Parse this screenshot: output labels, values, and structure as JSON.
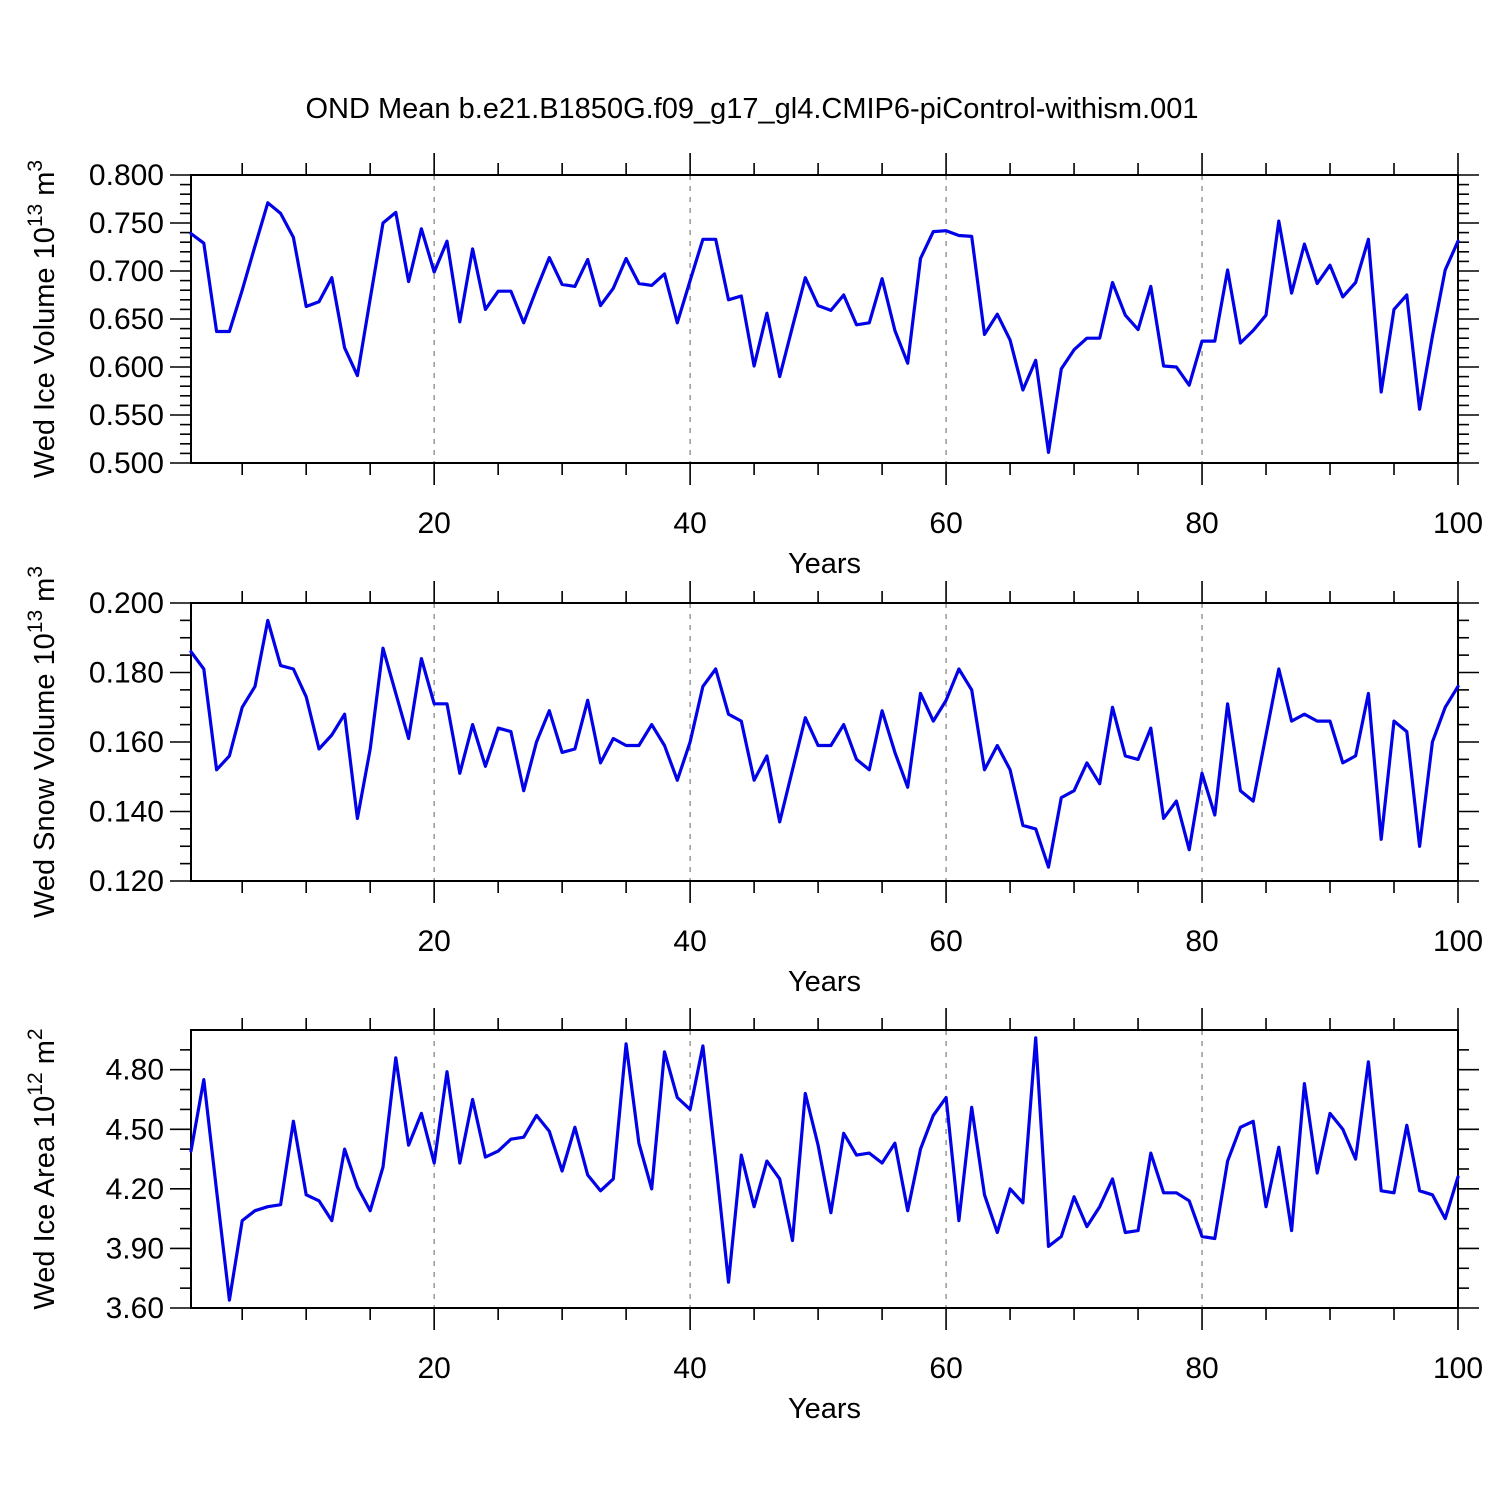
{
  "title": "OND Mean b.e21.B1850G.f09_g17_gl4.CMIP6-piControl-withism.001",
  "line_color": "#0202e8",
  "grid_color": "#878787",
  "xlabel": "Years",
  "chart_data": [
    {
      "type": "line",
      "name": "wed-ice-volume",
      "ylabel": "Wed Ice Volume 10^13 m^3",
      "ylabel_parts": [
        {
          "t": "Wed Ice Volume 10"
        },
        {
          "t": "13",
          "sup": true
        },
        {
          "t": " m"
        },
        {
          "t": "3",
          "sup": true
        }
      ],
      "ylim": [
        0.5,
        0.8
      ],
      "ytick_values": [
        0.5,
        0.55,
        0.6,
        0.65,
        0.7,
        0.75,
        0.8
      ],
      "ytick_labels": [
        "0.500",
        "0.550",
        "0.600",
        "0.650",
        "0.700",
        "0.750",
        "0.800"
      ],
      "yminor_step": 0.01,
      "xlabel": "Years",
      "xlim": [
        1,
        100
      ],
      "xticks": [
        20,
        40,
        60,
        80,
        100
      ],
      "xtick_labels": [
        "20",
        "40",
        "60",
        "80",
        "100"
      ],
      "xminor_step": 5,
      "grid_x": [
        20,
        40,
        60,
        80
      ],
      "x_start": 1,
      "values": [
        0.739,
        0.729,
        0.637,
        0.637,
        0.68,
        0.726,
        0.771,
        0.76,
        0.735,
        0.663,
        0.668,
        0.693,
        0.62,
        0.591,
        0.671,
        0.75,
        0.761,
        0.689,
        0.744,
        0.699,
        0.731,
        0.647,
        0.723,
        0.66,
        0.679,
        0.679,
        0.646,
        0.681,
        0.714,
        0.686,
        0.684,
        0.712,
        0.664,
        0.682,
        0.713,
        0.687,
        0.685,
        0.697,
        0.646,
        0.69,
        0.733,
        0.733,
        0.67,
        0.674,
        0.601,
        0.656,
        0.59,
        0.642,
        0.693,
        0.664,
        0.659,
        0.675,
        0.644,
        0.646,
        0.692,
        0.638,
        0.604,
        0.713,
        0.741,
        0.742,
        0.737,
        0.736,
        0.634,
        0.655,
        0.628,
        0.576,
        0.607,
        0.511,
        0.598,
        0.618,
        0.63,
        0.63,
        0.688,
        0.654,
        0.639,
        0.684,
        0.601,
        0.6,
        0.581,
        0.627,
        0.627,
        0.701,
        0.625,
        0.638,
        0.654,
        0.752,
        0.677,
        0.728,
        0.687,
        0.706,
        0.673,
        0.688,
        0.733,
        0.574,
        0.66,
        0.675,
        0.556,
        0.632,
        0.701,
        0.731
      ]
    },
    {
      "type": "line",
      "name": "wed-snow-volume",
      "ylabel": "Wed Snow Volume 10^13 m^3",
      "ylabel_parts": [
        {
          "t": "Wed Snow Volume 10"
        },
        {
          "t": "13",
          "sup": true
        },
        {
          "t": " m"
        },
        {
          "t": "3",
          "sup": true
        }
      ],
      "ylim": [
        0.12,
        0.2
      ],
      "ytick_values": [
        0.12,
        0.14,
        0.16,
        0.18,
        0.2
      ],
      "ytick_labels": [
        "0.120",
        "0.140",
        "0.160",
        "0.180",
        "0.200"
      ],
      "yminor_step": 0.005,
      "xlabel": "Years",
      "xlim": [
        1,
        100
      ],
      "xticks": [
        20,
        40,
        60,
        80,
        100
      ],
      "xtick_labels": [
        "20",
        "40",
        "60",
        "80",
        "100"
      ],
      "xminor_step": 5,
      "grid_x": [
        20,
        40,
        60,
        80
      ],
      "x_start": 1,
      "values": [
        0.186,
        0.181,
        0.152,
        0.156,
        0.17,
        0.176,
        0.195,
        0.182,
        0.181,
        0.173,
        0.158,
        0.162,
        0.168,
        0.138,
        0.158,
        0.187,
        0.174,
        0.161,
        0.184,
        0.171,
        0.171,
        0.151,
        0.165,
        0.153,
        0.164,
        0.163,
        0.146,
        0.16,
        0.169,
        0.157,
        0.158,
        0.172,
        0.154,
        0.161,
        0.159,
        0.159,
        0.165,
        0.159,
        0.149,
        0.16,
        0.176,
        0.181,
        0.168,
        0.166,
        0.149,
        0.156,
        0.137,
        0.152,
        0.167,
        0.159,
        0.159,
        0.165,
        0.155,
        0.152,
        0.169,
        0.157,
        0.147,
        0.174,
        0.166,
        0.172,
        0.181,
        0.175,
        0.152,
        0.159,
        0.152,
        0.136,
        0.135,
        0.124,
        0.144,
        0.146,
        0.154,
        0.148,
        0.17,
        0.156,
        0.155,
        0.164,
        0.138,
        0.143,
        0.129,
        0.151,
        0.139,
        0.171,
        0.146,
        0.143,
        0.162,
        0.181,
        0.166,
        0.168,
        0.166,
        0.166,
        0.154,
        0.156,
        0.174,
        0.132,
        0.166,
        0.163,
        0.13,
        0.16,
        0.17,
        0.176
      ]
    },
    {
      "type": "line",
      "name": "wed-ice-area",
      "ylabel": "Wed Ice Area 10^12 m^2",
      "ylabel_parts": [
        {
          "t": "Wed Ice Area 10"
        },
        {
          "t": "12",
          "sup": true
        },
        {
          "t": " m"
        },
        {
          "t": "2",
          "sup": true
        }
      ],
      "ylim": [
        3.6,
        5.0
      ],
      "ytick_values": [
        3.6,
        3.9,
        4.2,
        4.5,
        4.8
      ],
      "ytick_labels": [
        "3.60",
        "3.90",
        "4.20",
        "4.50",
        "4.80"
      ],
      "yminor_step": 0.1,
      "xlabel": "Years",
      "xlim": [
        1,
        100
      ],
      "xticks": [
        20,
        40,
        60,
        80,
        100
      ],
      "xtick_labels": [
        "20",
        "40",
        "60",
        "80",
        "100"
      ],
      "xminor_step": 5,
      "grid_x": [
        20,
        40,
        60,
        80
      ],
      "x_start": 1,
      "values": [
        4.39,
        4.75,
        4.19,
        3.64,
        4.04,
        4.09,
        4.11,
        4.12,
        4.54,
        4.17,
        4.14,
        4.04,
        4.4,
        4.21,
        4.09,
        4.31,
        4.86,
        4.42,
        4.58,
        4.33,
        4.79,
        4.33,
        4.65,
        4.36,
        4.39,
        4.45,
        4.46,
        4.57,
        4.49,
        4.29,
        4.51,
        4.27,
        4.19,
        4.25,
        4.93,
        4.43,
        4.2,
        4.89,
        4.66,
        4.6,
        4.92,
        4.34,
        3.73,
        4.37,
        4.11,
        4.34,
        4.25,
        3.94,
        4.68,
        4.42,
        4.08,
        4.48,
        4.37,
        4.38,
        4.33,
        4.43,
        4.09,
        4.4,
        4.57,
        4.66,
        4.04,
        4.61,
        4.17,
        3.98,
        4.2,
        4.13,
        4.96,
        3.91,
        3.96,
        4.16,
        4.01,
        4.11,
        4.25,
        3.98,
        3.99,
        4.38,
        4.18,
        4.18,
        4.14,
        3.96,
        3.95,
        4.34,
        4.51,
        4.54,
        4.11,
        4.41,
        3.99,
        4.73,
        4.28,
        4.58,
        4.5,
        4.35,
        4.84,
        4.19,
        4.18,
        4.52,
        4.19,
        4.17,
        4.05,
        4.26
      ]
    }
  ]
}
